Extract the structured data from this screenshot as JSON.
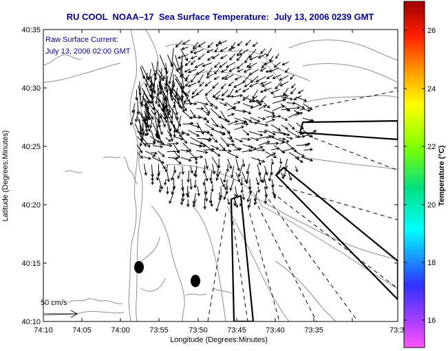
{
  "title": "RU COOL  NOAA–17  Sea Surface Temperature:  July 13, 2006 0239 GMT",
  "annotation": {
    "line1": "Raw Surface Current:",
    "line2": "July 13, 2006 02:00 GMT"
  },
  "x_axis": {
    "label": "Longitude (Degrees:Minutes)",
    "ticks": [
      "74:10",
      "74:05",
      "74:00",
      "73:55",
      "73:50",
      "73:45",
      "73:40",
      "73:35",
      "73:3"
    ]
  },
  "y_axis": {
    "label": "Latitude (Degrees:Minutes)",
    "ticks": [
      "40:35",
      "40:30",
      "40:25",
      "40:20",
      "40:15",
      "40:10"
    ]
  },
  "scale_label": "50 cm/s",
  "colorbar": {
    "label": "Temperature (°C)",
    "ticks": [
      "26",
      "24",
      "22",
      "20",
      "18",
      "16"
    ]
  }
}
